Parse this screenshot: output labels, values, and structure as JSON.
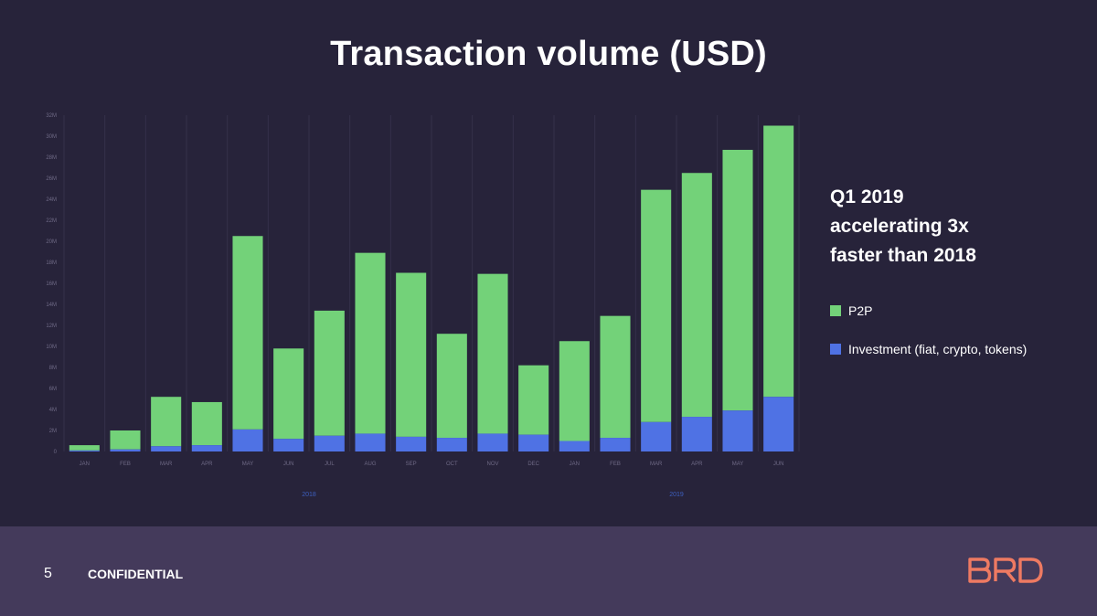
{
  "slide": {
    "title": "Transaction volume (USD)",
    "annotation": "Q1 2019\naccelerating 3x\nfaster than 2018",
    "page_number": "5",
    "confidential_label": "CONFIDENTIAL",
    "logo_text": "BRD"
  },
  "colors": {
    "background": "#27233a",
    "footer": "#443a5b",
    "p2p": "#73d279",
    "investment": "#4f72e4",
    "logo": "#ee7a62",
    "year_label": "#3d5fbf"
  },
  "chart_data": {
    "type": "bar",
    "stacked": true,
    "categories": [
      "JAN",
      "FEB",
      "MAR",
      "APR",
      "MAY",
      "JUN",
      "JUL",
      "AUG",
      "SEP",
      "OCT",
      "NOV",
      "DEC",
      "JAN",
      "FEB",
      "MAR",
      "APR",
      "MAY",
      "JUN"
    ],
    "year_groups": [
      {
        "label": "2018",
        "start": 0,
        "end": 11
      },
      {
        "label": "2019",
        "start": 12,
        "end": 17
      }
    ],
    "series": [
      {
        "name": "Investment (fiat, crypto, tokens)",
        "values": [
          0.1,
          0.2,
          0.5,
          0.6,
          2.1,
          1.2,
          1.5,
          1.7,
          1.4,
          1.3,
          1.7,
          1.6,
          1.0,
          1.3,
          2.8,
          3.3,
          3.9,
          5.2
        ]
      },
      {
        "name": "P2P",
        "values": [
          0.5,
          1.8,
          4.7,
          4.1,
          18.4,
          8.6,
          11.9,
          17.2,
          15.6,
          9.9,
          15.2,
          6.6,
          9.5,
          11.6,
          22.1,
          23.2,
          24.8,
          25.8
        ]
      }
    ],
    "ylim": [
      0,
      32
    ],
    "yticks": [
      "0",
      "2M",
      "4M",
      "6M",
      "8M",
      "10M",
      "12M",
      "14M",
      "16M",
      "18M",
      "20M",
      "22M",
      "24M",
      "26M",
      "28M",
      "30M",
      "32M"
    ],
    "xlabel": "",
    "ylabel": "",
    "grid": "vertical",
    "legend_position": "right"
  }
}
